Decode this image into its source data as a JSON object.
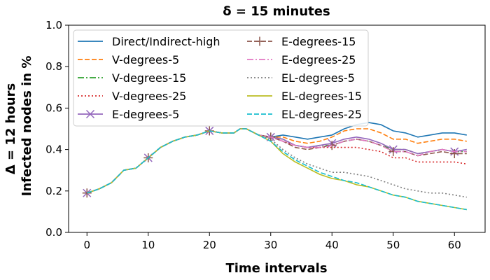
{
  "chart_data": {
    "type": "line",
    "title": "δ = 15 minutes",
    "xlabel": "Time intervals",
    "ylabel_line1": "Δ = 12 hours",
    "ylabel_line2": "Infected nodes in %",
    "xlim": [
      -3,
      65
    ],
    "ylim": [
      0.0,
      1.0
    ],
    "xticks": [
      0,
      10,
      20,
      30,
      40,
      50,
      60
    ],
    "xtick_labels": [
      "0",
      "10",
      "20",
      "30",
      "40",
      "50",
      "60"
    ],
    "yticks": [
      0.0,
      0.2,
      0.4,
      0.6,
      0.8,
      1.0
    ],
    "ytick_labels": [
      "0.0",
      "0.2",
      "0.4",
      "0.6",
      "0.8",
      "1.0"
    ],
    "grid": false,
    "legend_position": "top-left",
    "legend_columns": 2,
    "series": [
      {
        "name": "Direct/Indirect-high",
        "color": "#1f77b4",
        "dash": "solid",
        "marker": "none",
        "x": [
          0,
          2,
          4,
          6,
          8,
          10,
          12,
          14,
          16,
          18,
          20,
          22,
          24,
          25,
          26,
          28,
          30,
          32,
          34,
          36,
          38,
          40,
          42,
          44,
          46,
          48,
          50,
          52,
          54,
          56,
          58,
          60,
          62
        ],
        "y": [
          0.19,
          0.21,
          0.24,
          0.3,
          0.31,
          0.36,
          0.41,
          0.44,
          0.46,
          0.47,
          0.49,
          0.48,
          0.48,
          0.5,
          0.5,
          0.47,
          0.46,
          0.47,
          0.46,
          0.45,
          0.46,
          0.47,
          0.5,
          0.52,
          0.53,
          0.52,
          0.49,
          0.48,
          0.46,
          0.47,
          0.48,
          0.48,
          0.47
        ]
      },
      {
        "name": "V-degrees-5",
        "color": "#ff7f0e",
        "dash": "dashed",
        "marker": "none",
        "x": [
          0,
          2,
          4,
          6,
          8,
          10,
          12,
          14,
          16,
          18,
          20,
          22,
          24,
          25,
          26,
          28,
          30,
          32,
          34,
          36,
          38,
          40,
          42,
          44,
          46,
          48,
          50,
          52,
          54,
          56,
          58,
          60,
          62
        ],
        "y": [
          0.19,
          0.21,
          0.24,
          0.3,
          0.31,
          0.36,
          0.41,
          0.44,
          0.46,
          0.47,
          0.49,
          0.48,
          0.48,
          0.5,
          0.5,
          0.47,
          0.46,
          0.46,
          0.44,
          0.43,
          0.44,
          0.46,
          0.49,
          0.5,
          0.5,
          0.48,
          0.45,
          0.45,
          0.43,
          0.44,
          0.45,
          0.45,
          0.44
        ]
      },
      {
        "name": "V-degrees-15",
        "color": "#2ca02c",
        "dash": "dashdot",
        "marker": "none",
        "x": [
          0,
          2,
          4,
          6,
          8,
          10,
          12,
          14,
          16,
          18,
          20,
          22,
          24,
          25,
          26,
          28,
          30,
          32,
          34,
          36,
          38,
          40,
          42,
          44,
          46,
          48,
          50,
          52,
          54,
          56,
          58,
          60,
          62
        ],
        "y": [
          0.19,
          0.21,
          0.24,
          0.3,
          0.31,
          0.36,
          0.41,
          0.44,
          0.46,
          0.47,
          0.49,
          0.48,
          0.48,
          0.5,
          0.5,
          0.47,
          0.46,
          0.45,
          0.42,
          0.41,
          0.42,
          0.42,
          0.44,
          0.45,
          0.44,
          0.42,
          0.4,
          0.4,
          0.38,
          0.39,
          0.4,
          0.39,
          0.39
        ]
      },
      {
        "name": "V-degrees-25",
        "color": "#d62728",
        "dash": "dotted",
        "marker": "none",
        "x": [
          0,
          2,
          4,
          6,
          8,
          10,
          12,
          14,
          16,
          18,
          20,
          22,
          24,
          25,
          26,
          28,
          30,
          32,
          34,
          36,
          38,
          40,
          42,
          44,
          46,
          48,
          50,
          52,
          54,
          56,
          58,
          60,
          62
        ],
        "y": [
          0.19,
          0.21,
          0.24,
          0.3,
          0.31,
          0.36,
          0.41,
          0.44,
          0.46,
          0.47,
          0.49,
          0.48,
          0.48,
          0.5,
          0.5,
          0.47,
          0.46,
          0.44,
          0.42,
          0.41,
          0.41,
          0.41,
          0.41,
          0.41,
          0.4,
          0.39,
          0.36,
          0.36,
          0.34,
          0.34,
          0.34,
          0.34,
          0.33
        ]
      },
      {
        "name": "E-degrees-5",
        "color": "#9467bd",
        "dash": "solid",
        "marker": "x",
        "x": [
          0,
          2,
          4,
          6,
          8,
          10,
          12,
          14,
          16,
          18,
          20,
          22,
          24,
          25,
          26,
          28,
          30,
          32,
          34,
          36,
          38,
          40,
          42,
          44,
          46,
          48,
          50,
          52,
          54,
          56,
          58,
          60,
          62
        ],
        "y": [
          0.19,
          0.21,
          0.24,
          0.3,
          0.31,
          0.36,
          0.41,
          0.44,
          0.46,
          0.47,
          0.49,
          0.48,
          0.48,
          0.5,
          0.5,
          0.47,
          0.46,
          0.45,
          0.42,
          0.41,
          0.42,
          0.43,
          0.45,
          0.46,
          0.45,
          0.43,
          0.4,
          0.4,
          0.38,
          0.39,
          0.4,
          0.39,
          0.4
        ],
        "marker_x": [
          0,
          10,
          20,
          30,
          40,
          50,
          60
        ]
      },
      {
        "name": "E-degrees-15",
        "color": "#8c564b",
        "dash": "dashed",
        "marker": "+",
        "x": [
          0,
          2,
          4,
          6,
          8,
          10,
          12,
          14,
          16,
          18,
          20,
          22,
          24,
          25,
          26,
          28,
          30,
          32,
          34,
          36,
          38,
          40,
          42,
          44,
          46,
          48,
          50,
          52,
          54,
          56,
          58,
          60,
          62
        ],
        "y": [
          0.19,
          0.21,
          0.24,
          0.3,
          0.31,
          0.36,
          0.41,
          0.44,
          0.46,
          0.47,
          0.49,
          0.48,
          0.48,
          0.5,
          0.5,
          0.47,
          0.46,
          0.44,
          0.41,
          0.4,
          0.41,
          0.42,
          0.44,
          0.45,
          0.44,
          0.42,
          0.39,
          0.39,
          0.37,
          0.38,
          0.39,
          0.38,
          0.38
        ],
        "marker_x": [
          0,
          10,
          20,
          30,
          40,
          50,
          60
        ]
      },
      {
        "name": "E-degrees-25",
        "color": "#e377c2",
        "dash": "dashdot",
        "marker": "none",
        "x": [
          0,
          2,
          4,
          6,
          8,
          10,
          12,
          14,
          16,
          18,
          20,
          22,
          24,
          25,
          26,
          28,
          30,
          32,
          34,
          36,
          38,
          40,
          42,
          44,
          46,
          48,
          50,
          52,
          54,
          56,
          58,
          60,
          62
        ],
        "y": [
          0.19,
          0.21,
          0.24,
          0.3,
          0.31,
          0.36,
          0.41,
          0.44,
          0.46,
          0.47,
          0.49,
          0.48,
          0.48,
          0.5,
          0.5,
          0.47,
          0.46,
          0.44,
          0.42,
          0.41,
          0.41,
          0.42,
          0.44,
          0.45,
          0.44,
          0.42,
          0.39,
          0.39,
          0.37,
          0.39,
          0.4,
          0.39,
          0.39
        ]
      },
      {
        "name": "EL-degrees-5",
        "color": "#7f7f7f",
        "dash": "dotted",
        "marker": "none",
        "x": [
          0,
          2,
          4,
          6,
          8,
          10,
          12,
          14,
          16,
          18,
          20,
          22,
          24,
          25,
          26,
          28,
          30,
          32,
          34,
          36,
          38,
          40,
          42,
          44,
          46,
          48,
          50,
          52,
          54,
          56,
          58,
          60,
          62
        ],
        "y": [
          0.19,
          0.21,
          0.24,
          0.3,
          0.31,
          0.36,
          0.41,
          0.44,
          0.46,
          0.47,
          0.49,
          0.48,
          0.48,
          0.5,
          0.5,
          0.47,
          0.45,
          0.4,
          0.36,
          0.33,
          0.31,
          0.29,
          0.29,
          0.28,
          0.27,
          0.25,
          0.23,
          0.21,
          0.2,
          0.19,
          0.19,
          0.18,
          0.17
        ]
      },
      {
        "name": "EL-degrees-15",
        "color": "#bcbd22",
        "dash": "solid",
        "marker": "none",
        "x": [
          0,
          2,
          4,
          6,
          8,
          10,
          12,
          14,
          16,
          18,
          20,
          22,
          24,
          25,
          26,
          28,
          30,
          32,
          34,
          36,
          38,
          40,
          42,
          44,
          46,
          48,
          50,
          52,
          54,
          56,
          58,
          60,
          62
        ],
        "y": [
          0.19,
          0.21,
          0.24,
          0.3,
          0.31,
          0.36,
          0.41,
          0.44,
          0.46,
          0.47,
          0.49,
          0.48,
          0.48,
          0.5,
          0.5,
          0.47,
          0.44,
          0.38,
          0.34,
          0.31,
          0.28,
          0.26,
          0.25,
          0.23,
          0.22,
          0.2,
          0.18,
          0.17,
          0.15,
          0.14,
          0.13,
          0.12,
          0.11
        ]
      },
      {
        "name": "EL-degrees-25",
        "color": "#17becf",
        "dash": "dashed",
        "marker": "none",
        "x": [
          0,
          2,
          4,
          6,
          8,
          10,
          12,
          14,
          16,
          18,
          20,
          22,
          24,
          25,
          26,
          28,
          30,
          32,
          34,
          36,
          38,
          40,
          42,
          44,
          46,
          48,
          50,
          52,
          54,
          56,
          58,
          60,
          62
        ],
        "y": [
          0.19,
          0.21,
          0.24,
          0.3,
          0.31,
          0.36,
          0.41,
          0.44,
          0.46,
          0.47,
          0.49,
          0.48,
          0.48,
          0.5,
          0.5,
          0.47,
          0.44,
          0.39,
          0.35,
          0.32,
          0.29,
          0.27,
          0.25,
          0.24,
          0.22,
          0.2,
          0.18,
          0.17,
          0.15,
          0.14,
          0.13,
          0.12,
          0.11
        ]
      }
    ]
  }
}
